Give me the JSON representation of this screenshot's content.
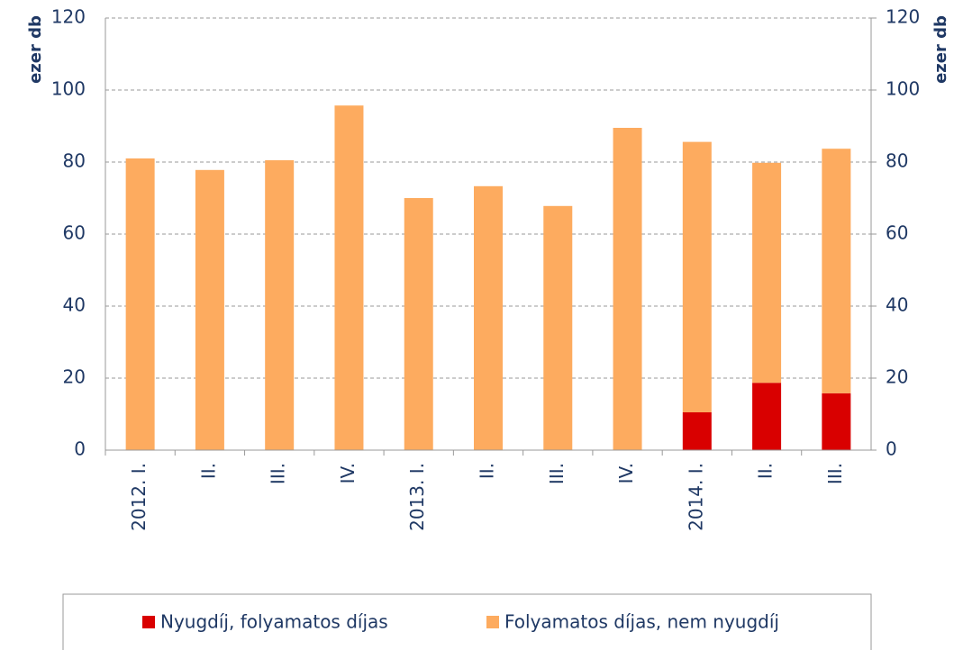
{
  "chart_data": {
    "type": "stacked_bar",
    "categories": [
      "2012. I.",
      "II.",
      "III.",
      "IV.",
      "2013. I.",
      "II.",
      "III.",
      "IV.",
      "2014. I.",
      "II.",
      "III."
    ],
    "series": [
      {
        "name": "Nyugdíj, folyamatos díjas",
        "color": "#d90000",
        "values": [
          null,
          null,
          null,
          null,
          null,
          null,
          null,
          null,
          10.5,
          18.7,
          15.8
        ]
      },
      {
        "name": "Folyamatos díjas, nem nyugdíj",
        "color": "#fdab5f",
        "values": [
          81,
          77.8,
          80.5,
          95.7,
          70,
          73.3,
          67.8,
          89.5,
          75.1,
          61.1,
          67.9
        ]
      }
    ],
    "y_label": "ezer db",
    "y2_label": "ezer db",
    "ylim": [
      0,
      120
    ],
    "yticks": [
      0,
      20,
      40,
      60,
      80,
      100,
      120
    ],
    "y2lim": [
      0,
      120
    ],
    "y2ticks": [
      0,
      20,
      40,
      60,
      80,
      100,
      120
    ],
    "grid": true,
    "legend": "bottom"
  }
}
